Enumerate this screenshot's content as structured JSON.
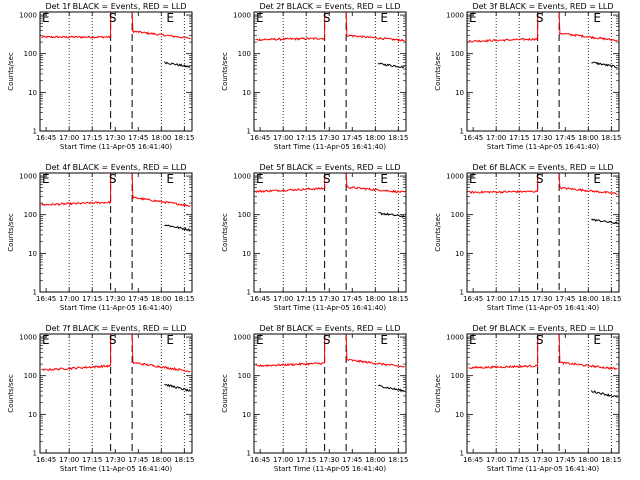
{
  "chart_data": [
    {
      "type": "line",
      "title": "Det 1f BLACK = Events, RED = LLD",
      "xlabel": "Start Time (11-Apr-05 16:41:40)",
      "ylabel": "Counts/sec",
      "x_tick_labels": [
        "16:45",
        "17:00",
        "17:15",
        "17:30",
        "17:45",
        "18:00",
        "18:15"
      ],
      "y_tick_labels": [
        "1",
        "10",
        "100",
        "1000"
      ],
      "ylim": [
        1,
        1200
      ],
      "y_scale": "log",
      "markers": [
        {
          "label": "E",
          "x": "16:41"
        },
        {
          "label": "S",
          "x": "17:29"
        },
        {
          "label": "E",
          "x": "18:02"
        }
      ],
      "series": [
        {
          "name": "LLD",
          "color": "#ff0000",
          "segments": [
            {
              "x": [
                "16:42",
                "17:27"
              ],
              "y": [
                270,
                270
              ]
            },
            {
              "x": [
                "17:27",
                "17:41"
              ],
              "y": [
                1200,
                1200
              ]
            },
            {
              "x": [
                "17:41",
                "18:19"
              ],
              "y": [
                380,
                250
              ]
            }
          ]
        },
        {
          "name": "Events",
          "color": "#000000",
          "segments": [
            {
              "x": [
                "18:02",
                "18:19"
              ],
              "y": [
                60,
                45
              ]
            }
          ]
        }
      ]
    },
    {
      "type": "line",
      "title": "Det 2f BLACK = Events, RED = LLD",
      "xlabel": "Start Time (11-Apr-05 16:41:40)",
      "ylabel": "Counts/sec",
      "x_tick_labels": [
        "16:45",
        "17:00",
        "17:15",
        "17:30",
        "17:45",
        "18:00",
        "18:15"
      ],
      "y_tick_labels": [
        "1",
        "10",
        "100",
        "1000"
      ],
      "ylim": [
        1,
        1200
      ],
      "y_scale": "log",
      "markers": [
        {
          "label": "E",
          "x": "16:41"
        },
        {
          "label": "S",
          "x": "17:29"
        },
        {
          "label": "E",
          "x": "18:02"
        }
      ],
      "series": [
        {
          "name": "LLD",
          "color": "#ff0000",
          "segments": [
            {
              "x": [
                "16:42",
                "17:27"
              ],
              "y": [
                230,
                250
              ]
            },
            {
              "x": [
                "17:27",
                "17:41"
              ],
              "y": [
                1200,
                1200
              ]
            },
            {
              "x": [
                "17:41",
                "18:19"
              ],
              "y": [
                300,
                220
              ]
            }
          ]
        },
        {
          "name": "Events",
          "color": "#000000",
          "segments": [
            {
              "x": [
                "18:02",
                "18:19"
              ],
              "y": [
                55,
                45
              ]
            }
          ]
        }
      ]
    },
    {
      "type": "line",
      "title": "Det 3f BLACK = Events, RED = LLD",
      "xlabel": "Start Time (11-Apr-05 16:41:40)",
      "ylabel": "Counts/sec",
      "x_tick_labels": [
        "16:45",
        "17:00",
        "17:15",
        "17:30",
        "17:45",
        "18:00",
        "18:15"
      ],
      "y_tick_labels": [
        "1",
        "10",
        "100",
        "1000"
      ],
      "ylim": [
        1,
        1200
      ],
      "y_scale": "log",
      "markers": [
        {
          "label": "E",
          "x": "16:41"
        },
        {
          "label": "S",
          "x": "17:29"
        },
        {
          "label": "E",
          "x": "18:02"
        }
      ],
      "series": [
        {
          "name": "LLD",
          "color": "#ff0000",
          "segments": [
            {
              "x": [
                "16:42",
                "17:27"
              ],
              "y": [
                210,
                240
              ]
            },
            {
              "x": [
                "17:27",
                "17:41"
              ],
              "y": [
                1200,
                1200
              ]
            },
            {
              "x": [
                "17:41",
                "18:19"
              ],
              "y": [
                340,
                220
              ]
            }
          ]
        },
        {
          "name": "Events",
          "color": "#000000",
          "segments": [
            {
              "x": [
                "18:02",
                "18:19"
              ],
              "y": [
                60,
                45
              ]
            }
          ]
        }
      ]
    },
    {
      "type": "line",
      "title": "Det 4f BLACK = Events, RED = LLD",
      "xlabel": "Start Time (11-Apr-05 16:41:40)",
      "ylabel": "Counts/sec",
      "x_tick_labels": [
        "16:45",
        "17:00",
        "17:15",
        "17:30",
        "17:45",
        "18:00",
        "18:15"
      ],
      "y_tick_labels": [
        "1",
        "10",
        "100",
        "1000"
      ],
      "ylim": [
        1,
        1200
      ],
      "y_scale": "log",
      "markers": [
        {
          "label": "E",
          "x": "16:41"
        },
        {
          "label": "S",
          "x": "17:29"
        },
        {
          "label": "E",
          "x": "18:02"
        }
      ],
      "series": [
        {
          "name": "LLD",
          "color": "#ff0000",
          "segments": [
            {
              "x": [
                "16:42",
                "17:27"
              ],
              "y": [
                180,
                210
              ]
            },
            {
              "x": [
                "17:27",
                "17:41"
              ],
              "y": [
                1200,
                1200
              ]
            },
            {
              "x": [
                "17:41",
                "18:19"
              ],
              "y": [
                280,
                170
              ]
            }
          ]
        },
        {
          "name": "Events",
          "color": "#000000",
          "segments": [
            {
              "x": [
                "18:02",
                "18:19"
              ],
              "y": [
                55,
                40
              ]
            }
          ]
        }
      ]
    },
    {
      "type": "line",
      "title": "Det 5f BLACK = Events, RED = LLD",
      "xlabel": "Start Time (11-Apr-05 16:41:40)",
      "ylabel": "Counts/sec",
      "x_tick_labels": [
        "16:45",
        "17:00",
        "17:15",
        "17:30",
        "17:45",
        "18:00",
        "18:15"
      ],
      "y_tick_labels": [
        "1",
        "10",
        "100",
        "1000"
      ],
      "ylim": [
        1,
        1200
      ],
      "y_scale": "log",
      "markers": [
        {
          "label": "E",
          "x": "16:41"
        },
        {
          "label": "S",
          "x": "17:29"
        },
        {
          "label": "E",
          "x": "18:02"
        }
      ],
      "series": [
        {
          "name": "LLD",
          "color": "#ff0000",
          "segments": [
            {
              "x": [
                "16:42",
                "17:27"
              ],
              "y": [
                400,
                480
              ]
            },
            {
              "x": [
                "17:27",
                "17:41"
              ],
              "y": [
                1200,
                1200
              ]
            },
            {
              "x": [
                "17:41",
                "18:19"
              ],
              "y": [
                520,
                380
              ]
            }
          ]
        },
        {
          "name": "Events",
          "color": "#000000",
          "segments": [
            {
              "x": [
                "18:02",
                "18:19"
              ],
              "y": [
                110,
                90
              ]
            }
          ]
        }
      ]
    },
    {
      "type": "line",
      "title": "Det 6f BLACK = Events, RED = LLD",
      "xlabel": "Start Time (11-Apr-05 16:41:40)",
      "ylabel": "Counts/sec",
      "x_tick_labels": [
        "16:45",
        "17:00",
        "17:15",
        "17:30",
        "17:45",
        "18:00",
        "18:15"
      ],
      "y_tick_labels": [
        "1",
        "10",
        "100",
        "1000"
      ],
      "ylim": [
        1,
        1200
      ],
      "y_scale": "log",
      "markers": [
        {
          "label": "E",
          "x": "16:41"
        },
        {
          "label": "S",
          "x": "17:29"
        },
        {
          "label": "E",
          "x": "18:02"
        }
      ],
      "series": [
        {
          "name": "LLD",
          "color": "#ff0000",
          "segments": [
            {
              "x": [
                "16:42",
                "17:27"
              ],
              "y": [
                380,
                400
              ]
            },
            {
              "x": [
                "17:27",
                "17:41"
              ],
              "y": [
                1200,
                1200
              ]
            },
            {
              "x": [
                "17:41",
                "18:19"
              ],
              "y": [
                500,
                350
              ]
            }
          ]
        },
        {
          "name": "Events",
          "color": "#000000",
          "segments": [
            {
              "x": [
                "18:02",
                "18:19"
              ],
              "y": [
                75,
                60
              ]
            }
          ]
        }
      ]
    },
    {
      "type": "line",
      "title": "Det 7f BLACK = Events, RED = LLD",
      "xlabel": "Start Time (11-Apr-05 16:41:40)",
      "ylabel": "Counts/sec",
      "x_tick_labels": [
        "16:45",
        "17:00",
        "17:15",
        "17:30",
        "17:45",
        "18:00",
        "18:15"
      ],
      "y_tick_labels": [
        "1",
        "10",
        "100",
        "1000"
      ],
      "ylim": [
        1,
        1200
      ],
      "y_scale": "log",
      "markers": [
        {
          "label": "E",
          "x": "16:41"
        },
        {
          "label": "S",
          "x": "17:29"
        },
        {
          "label": "E",
          "x": "18:02"
        }
      ],
      "series": [
        {
          "name": "LLD",
          "color": "#ff0000",
          "segments": [
            {
              "x": [
                "16:42",
                "17:27"
              ],
              "y": [
                140,
                180
              ]
            },
            {
              "x": [
                "17:27",
                "17:41"
              ],
              "y": [
                1200,
                1200
              ]
            },
            {
              "x": [
                "17:41",
                "18:19"
              ],
              "y": [
                220,
                130
              ]
            }
          ]
        },
        {
          "name": "Events",
          "color": "#000000",
          "segments": [
            {
              "x": [
                "18:02",
                "18:19"
              ],
              "y": [
                60,
                40
              ]
            }
          ]
        }
      ]
    },
    {
      "type": "line",
      "title": "Det 8f BLACK = Events, RED = LLD",
      "xlabel": "Start Time (11-Apr-05 16:41:40)",
      "ylabel": "Counts/sec",
      "x_tick_labels": [
        "16:45",
        "17:00",
        "17:15",
        "17:30",
        "17:45",
        "18:00",
        "18:15"
      ],
      "y_tick_labels": [
        "1",
        "10",
        "100",
        "1000"
      ],
      "ylim": [
        1,
        1200
      ],
      "y_scale": "log",
      "markers": [
        {
          "label": "E",
          "x": "16:41"
        },
        {
          "label": "S",
          "x": "17:29"
        },
        {
          "label": "E",
          "x": "18:02"
        }
      ],
      "series": [
        {
          "name": "LLD",
          "color": "#ff0000",
          "segments": [
            {
              "x": [
                "16:42",
                "17:27"
              ],
              "y": [
                180,
                210
              ]
            },
            {
              "x": [
                "17:27",
                "17:41"
              ],
              "y": [
                1200,
                1200
              ]
            },
            {
              "x": [
                "17:41",
                "18:19"
              ],
              "y": [
                260,
                170
              ]
            }
          ]
        },
        {
          "name": "Events",
          "color": "#000000",
          "segments": [
            {
              "x": [
                "18:02",
                "18:19"
              ],
              "y": [
                55,
                40
              ]
            }
          ]
        }
      ]
    },
    {
      "type": "line",
      "title": "Det 9f BLACK = Events, RED = LLD",
      "xlabel": "Start Time (11-Apr-05 16:41:40)",
      "ylabel": "Counts/sec",
      "x_tick_labels": [
        "16:45",
        "17:00",
        "17:15",
        "17:30",
        "17:45",
        "18:00",
        "18:15"
      ],
      "y_tick_labels": [
        "1",
        "10",
        "100",
        "1000"
      ],
      "ylim": [
        1,
        1200
      ],
      "y_scale": "log",
      "markers": [
        {
          "label": "E",
          "x": "16:41"
        },
        {
          "label": "S",
          "x": "17:29"
        },
        {
          "label": "E",
          "x": "18:02"
        }
      ],
      "series": [
        {
          "name": "LLD",
          "color": "#ff0000",
          "segments": [
            {
              "x": [
                "16:42",
                "17:27"
              ],
              "y": [
                160,
                180
              ]
            },
            {
              "x": [
                "17:27",
                "17:41"
              ],
              "y": [
                1200,
                1200
              ]
            },
            {
              "x": [
                "17:41",
                "18:19"
              ],
              "y": [
                220,
                150
              ]
            }
          ]
        },
        {
          "name": "Events",
          "color": "#000000",
          "segments": [
            {
              "x": [
                "18:02",
                "18:19"
              ],
              "y": [
                40,
                28
              ]
            }
          ]
        }
      ]
    }
  ]
}
